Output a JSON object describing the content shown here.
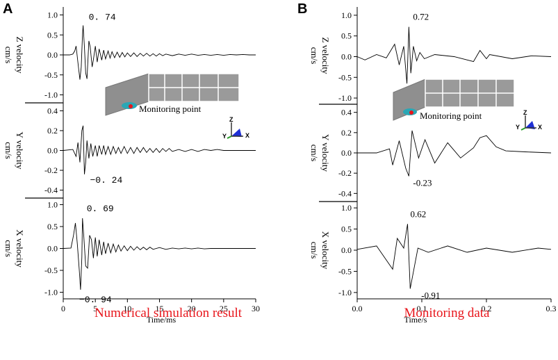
{
  "figure": {
    "panel_a_label": "A",
    "panel_b_label": "B",
    "caption_a": "Numerical simulation result",
    "caption_b": "Monitoring data",
    "inset_label": "Monitoring point",
    "axis_letters": {
      "x": "X",
      "y": "Y",
      "z": "Z"
    },
    "colors": {
      "caption": "#e8151b",
      "trace": "#000000",
      "inset_fill": "#8f8f8f"
    }
  },
  "chart_data": [
    {
      "type": "line",
      "panel": "A",
      "xlabel": "Time/ms",
      "x_ticks": [
        "0",
        "5",
        "10",
        "15",
        "20",
        "25",
        "30"
      ],
      "xlim": [
        0,
        30
      ],
      "subplots": [
        {
          "ylabel_lines": [
            "Z velocity",
            "cm/s"
          ],
          "ylim": [
            -1.2,
            1.2
          ],
          "y_ticks": [
            "1.0",
            "0.5",
            "0.0",
            "-0.5",
            "-1.0"
          ],
          "y_tick_values": [
            1.0,
            0.5,
            0.0,
            -0.5,
            -1.0
          ],
          "peaks": [
            {
              "label": "0. 74",
              "t": 3.1,
              "v": 0.74
            }
          ],
          "series": {
            "x": [
              0,
              1,
              1.5,
              1.8,
              2.0,
              2.3,
              2.6,
              2.8,
              3.0,
              3.1,
              3.3,
              3.5,
              3.7,
              4.0,
              4.2,
              4.5,
              4.7,
              5.0,
              5.3,
              5.6,
              6.0,
              6.3,
              6.6,
              7.0,
              7.3,
              7.6,
              8.0,
              8.4,
              8.8,
              9.2,
              9.6,
              10,
              10.5,
              11,
              11.5,
              12,
              12.5,
              13,
              13.5,
              14,
              14.5,
              15,
              15.5,
              16,
              17,
              18,
              19,
              20,
              21,
              22,
              23,
              24,
              25,
              26,
              27,
              28,
              29,
              30
            ],
            "y": [
              0,
              0,
              0.02,
              0.1,
              0.22,
              -0.2,
              -0.62,
              -0.3,
              0.5,
              0.74,
              0.2,
              -0.45,
              -0.6,
              0.35,
              0.2,
              -0.3,
              -0.12,
              0.22,
              -0.18,
              0.15,
              -0.13,
              0.12,
              -0.1,
              0.1,
              -0.08,
              0.08,
              -0.07,
              0.07,
              -0.06,
              0.06,
              -0.05,
              0.05,
              -0.04,
              0.05,
              -0.04,
              0.04,
              -0.03,
              0.04,
              -0.03,
              0.03,
              -0.03,
              0.03,
              -0.02,
              0.02,
              -0.02,
              0.02,
              -0.01,
              0.02,
              -0.01,
              0.01,
              -0.01,
              0.01,
              -0.01,
              0.01,
              0,
              0.01,
              0,
              0
            ]
          }
        },
        {
          "ylabel_lines": [
            "Y velocity",
            "cm/s"
          ],
          "ylim": [
            -0.48,
            0.48
          ],
          "y_ticks": [
            "0.4",
            "0.2",
            "0.0",
            "-0.2",
            "-0.4"
          ],
          "y_tick_values": [
            0.4,
            0.2,
            0.0,
            -0.2,
            -0.4
          ],
          "peaks": [
            {
              "label": "−0. 24",
              "t": 3.3,
              "v": -0.24
            }
          ],
          "series": {
            "x": [
              0,
              1.5,
              2.0,
              2.3,
              2.6,
              2.9,
              3.1,
              3.3,
              3.5,
              3.7,
              4.0,
              4.3,
              4.6,
              5.0,
              5.3,
              5.6,
              6.0,
              6.3,
              6.6,
              7.0,
              7.4,
              7.8,
              8.2,
              8.6,
              9.0,
              9.5,
              10,
              10.5,
              11,
              11.5,
              12,
              12.5,
              13,
              13.5,
              14,
              14.5,
              15,
              15.5,
              16,
              16.5,
              17,
              18,
              19,
              20,
              21,
              22,
              23,
              24,
              25,
              26,
              27,
              28,
              29,
              30
            ],
            "y": [
              0,
              0.01,
              -0.06,
              0.08,
              -0.12,
              0.2,
              0.25,
              -0.24,
              -0.12,
              0.1,
              -0.08,
              0.07,
              -0.06,
              0.05,
              -0.06,
              0.05,
              -0.04,
              0.05,
              -0.04,
              0.04,
              -0.04,
              0.04,
              -0.03,
              0.03,
              -0.03,
              0.04,
              -0.03,
              0.03,
              -0.03,
              0.03,
              -0.02,
              0.03,
              -0.02,
              0.02,
              -0.02,
              0.02,
              -0.02,
              0.02,
              -0.01,
              0.02,
              -0.01,
              0.01,
              -0.01,
              0.01,
              -0.01,
              0.01,
              0,
              0.01,
              0,
              0,
              0,
              0,
              0,
              0
            ]
          }
        },
        {
          "ylabel_lines": [
            "X velocity",
            "cm/s"
          ],
          "ylim": [
            -1.15,
            1.15
          ],
          "y_ticks": [
            "1.0",
            "0.5",
            "0.0",
            "-0.5",
            "-1.0"
          ],
          "y_tick_values": [
            1.0,
            0.5,
            0.0,
            -0.5,
            -1.0
          ],
          "peaks": [
            {
              "label": "0. 69",
              "t": 3.0,
              "v": 0.69
            },
            {
              "label": "−0. 94",
              "t": 2.7,
              "v": -0.94
            }
          ],
          "series": {
            "x": [
              0,
              1.2,
              1.6,
              1.9,
              2.2,
              2.5,
              2.7,
              2.9,
              3.0,
              3.2,
              3.5,
              3.8,
              4.1,
              4.4,
              4.7,
              5.0,
              5.3,
              5.6,
              6.0,
              6.3,
              6.6,
              7.0,
              7.4,
              7.8,
              8.2,
              8.6,
              9.0,
              9.5,
              10,
              10.5,
              11,
              11.5,
              12,
              12.5,
              13,
              13.5,
              14,
              15,
              16,
              17,
              18,
              19,
              20,
              21,
              22,
              23,
              24,
              25,
              26,
              27,
              28,
              29,
              30
            ],
            "y": [
              0,
              0.01,
              0.3,
              0.58,
              0.1,
              -0.5,
              -0.94,
              -0.2,
              0.69,
              0.3,
              -0.4,
              -0.45,
              0.3,
              0.2,
              -0.22,
              0.25,
              -0.18,
              0.2,
              -0.15,
              0.15,
              -0.12,
              0.12,
              -0.1,
              0.1,
              -0.08,
              0.08,
              -0.06,
              0.06,
              -0.05,
              0.05,
              -0.04,
              0.04,
              -0.03,
              0.03,
              -0.03,
              0.03,
              -0.02,
              0.02,
              -0.02,
              0.01,
              -0.01,
              0.01,
              -0.01,
              0.01,
              -0.01,
              0,
              0,
              0,
              0,
              0,
              0,
              0,
              0
            ]
          }
        }
      ]
    },
    {
      "type": "line",
      "panel": "B",
      "xlabel": "Time/s",
      "x_ticks": [
        "0.0",
        "0.1",
        "0.2",
        "0.3"
      ],
      "xlim": [
        0,
        0.3
      ],
      "subplots": [
        {
          "ylabel_lines": [
            "Z velocity",
            "cm/s"
          ],
          "ylim": [
            -1.15,
            1.2
          ],
          "y_ticks": [
            "1.0",
            "0.5",
            "0.0",
            "-0.5",
            "-1.0"
          ],
          "y_tick_values": [
            1.0,
            0.5,
            0.0,
            -0.5,
            -1.0
          ],
          "peaks": [
            {
              "label": "0.72",
              "t": 0.08,
              "v": 0.72
            }
          ],
          "series": {
            "x": [
              0,
              0.012,
              0.03,
              0.045,
              0.058,
              0.065,
              0.072,
              0.077,
              0.08,
              0.083,
              0.087,
              0.092,
              0.097,
              0.104,
              0.12,
              0.15,
              0.18,
              0.19,
              0.2,
              0.205,
              0.24,
              0.27,
              0.3
            ],
            "y": [
              0,
              -0.08,
              0.05,
              -0.03,
              0.3,
              -0.2,
              0.25,
              -0.65,
              0.72,
              -0.4,
              0.25,
              -0.1,
              0.1,
              -0.05,
              0.05,
              0,
              -0.12,
              0.15,
              -0.05,
              0.05,
              -0.05,
              0.02,
              0
            ]
          }
        },
        {
          "ylabel_lines": [
            "Y velocity",
            "cm/s"
          ],
          "ylim": [
            -0.48,
            0.48
          ],
          "y_ticks": [
            "0.4",
            "0.2",
            "0.0",
            "-0.2",
            "-0.4"
          ],
          "y_tick_values": [
            0.4,
            0.2,
            0.0,
            -0.2,
            -0.4
          ],
          "peaks": [
            {
              "label": "-0.23",
              "t": 0.08,
              "v": -0.23
            }
          ],
          "series": {
            "x": [
              0,
              0.03,
              0.05,
              0.055,
              0.065,
              0.075,
              0.08,
              0.085,
              0.095,
              0.105,
              0.12,
              0.14,
              0.16,
              0.18,
              0.19,
              0.2,
              0.215,
              0.23,
              0.26,
              0.3
            ],
            "y": [
              0,
              0,
              0.04,
              -0.12,
              0.12,
              -0.15,
              -0.23,
              0.22,
              -0.05,
              0.13,
              -0.1,
              0.1,
              -0.05,
              0.05,
              0.15,
              0.17,
              0.06,
              0.02,
              0.01,
              0
            ]
          }
        },
        {
          "ylabel_lines": [
            "X velocity",
            "cm/s"
          ],
          "ylim": [
            -1.15,
            1.15
          ],
          "y_ticks": [
            "1.0",
            "0.5",
            "0.0",
            "-0.5",
            "-1.0"
          ],
          "y_tick_values": [
            1.0,
            0.5,
            0.0,
            -0.5,
            -1.0
          ],
          "peaks": [
            {
              "label": "0.62",
              "t": 0.078,
              "v": 0.62
            },
            {
              "label": "-0.91",
              "t": 0.082,
              "v": -0.91
            }
          ],
          "series": {
            "x": [
              0,
              0.03,
              0.055,
              0.062,
              0.072,
              0.078,
              0.082,
              0.094,
              0.11,
              0.14,
              0.17,
              0.2,
              0.24,
              0.28,
              0.3
            ],
            "y": [
              0.02,
              0.1,
              -0.45,
              0.28,
              0.05,
              0.62,
              -0.91,
              0.05,
              -0.05,
              0.1,
              -0.05,
              0.05,
              -0.05,
              0.05,
              0.02
            ]
          }
        }
      ]
    }
  ]
}
